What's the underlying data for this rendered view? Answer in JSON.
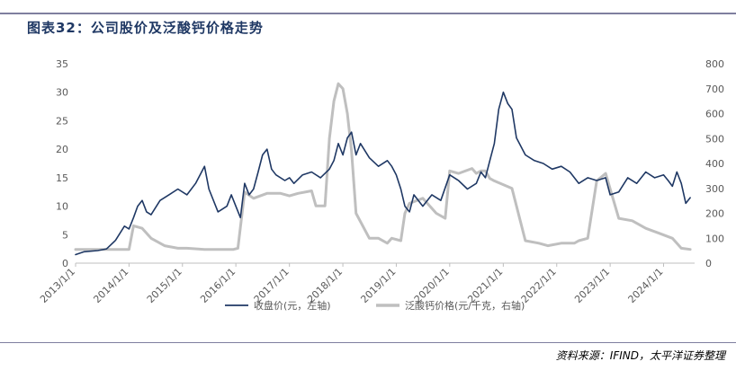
{
  "title": "图表32：公司股价及泛酸钙价格走势",
  "source": "资料来源：IFIND，太平洋证券整理",
  "colors": {
    "stock": "#1f3864",
    "price": "#bfbfbf",
    "axis": "#bfbfbf",
    "text": "#595959"
  },
  "chart_data": {
    "type": "line",
    "grid": false,
    "legend_position": "bottom",
    "x_ticks": [
      "2013/1/1",
      "2014/1/1",
      "2015/1/1",
      "2016/1/1",
      "2017/1/1",
      "2018/1/1",
      "2019/1/1",
      "2020/1/1",
      "2021/1/1",
      "2022/1/1",
      "2023/1/1",
      "2024/1/1"
    ],
    "xlim": [
      "2013-01-01",
      "2024-07-31"
    ],
    "y_left": {
      "ticks": [
        "0",
        "5",
        "10",
        "15",
        "20",
        "25",
        "30",
        "35"
      ],
      "lim": [
        0,
        35
      ]
    },
    "y_right": {
      "ticks": [
        "0",
        "100",
        "200",
        "300",
        "400",
        "500",
        "600",
        "700",
        "800"
      ],
      "lim": [
        0,
        800
      ]
    },
    "series": [
      {
        "name": "收盘价(元，左轴)",
        "axis": "left",
        "x": [
          "2013-01-01",
          "2013-03-01",
          "2013-06-01",
          "2013-08-01",
          "2013-10-01",
          "2013-12-01",
          "2014-01-01",
          "2014-02-01",
          "2014-03-01",
          "2014-04-01",
          "2014-05-01",
          "2014-06-01",
          "2014-08-01",
          "2014-10-01",
          "2014-12-01",
          "2015-02-01",
          "2015-04-01",
          "2015-06-01",
          "2015-07-01",
          "2015-09-01",
          "2015-11-01",
          "2015-12-01",
          "2016-01-01",
          "2016-02-01",
          "2016-03-01",
          "2016-04-01",
          "2016-05-01",
          "2016-06-01",
          "2016-07-01",
          "2016-08-01",
          "2016-09-01",
          "2016-10-01",
          "2016-12-01",
          "2017-01-01",
          "2017-02-01",
          "2017-04-01",
          "2017-06-01",
          "2017-08-01",
          "2017-10-01",
          "2017-11-01",
          "2017-12-01",
          "2018-01-01",
          "2018-02-01",
          "2018-03-01",
          "2018-04-01",
          "2018-05-01",
          "2018-07-01",
          "2018-09-01",
          "2018-11-01",
          "2018-12-01",
          "2019-01-01",
          "2019-02-01",
          "2019-03-01",
          "2019-04-01",
          "2019-05-01",
          "2019-07-01",
          "2019-09-01",
          "2019-11-01",
          "2020-01-01",
          "2020-03-01",
          "2020-05-01",
          "2020-07-01",
          "2020-08-01",
          "2020-09-01",
          "2020-10-01",
          "2020-11-01",
          "2020-12-01",
          "2021-01-01",
          "2021-02-01",
          "2021-03-01",
          "2021-04-01",
          "2021-06-01",
          "2021-08-01",
          "2021-10-01",
          "2021-12-01",
          "2022-02-01",
          "2022-04-01",
          "2022-06-01",
          "2022-08-01",
          "2022-10-01",
          "2022-12-01",
          "2023-01-01",
          "2023-03-01",
          "2023-05-01",
          "2023-07-01",
          "2023-09-01",
          "2023-11-01",
          "2024-01-01",
          "2024-02-01",
          "2024-03-01",
          "2024-04-01",
          "2024-05-01",
          "2024-06-01",
          "2024-07-01"
        ],
        "values": [
          1.5,
          2.0,
          2.2,
          2.5,
          4.0,
          6.5,
          6.0,
          8.0,
          10.0,
          11.0,
          9.0,
          8.5,
          11.0,
          12.0,
          13.0,
          12.0,
          14.0,
          17.0,
          13.0,
          9.0,
          10.0,
          12.0,
          10.0,
          8.0,
          14.0,
          12.0,
          13.0,
          16.0,
          19.0,
          20.0,
          16.5,
          15.5,
          14.5,
          15.0,
          14.0,
          15.5,
          16.0,
          15.0,
          16.5,
          18.0,
          21.0,
          19.0,
          22.0,
          23.0,
          19.0,
          21.0,
          18.5,
          17.0,
          18.0,
          17.0,
          15.5,
          13.0,
          10.0,
          9.0,
          12.0,
          10.0,
          12.0,
          11.0,
          15.5,
          14.5,
          13.0,
          14.0,
          16.0,
          15.0,
          18.0,
          21.0,
          27.0,
          30.0,
          28.0,
          27.0,
          22.0,
          19.0,
          18.0,
          17.5,
          16.5,
          17.0,
          16.0,
          14.0,
          15.0,
          14.5,
          15.0,
          12.0,
          12.5,
          15.0,
          14.0,
          16.0,
          15.0,
          15.5,
          14.5,
          13.5,
          16.0,
          14.0,
          10.5,
          11.5
        ]
      },
      {
        "name": "泛酸钙价格(元/千克，右轴)",
        "axis": "right",
        "x": [
          "2013-01-01",
          "2013-12-01",
          "2014-01-01",
          "2014-02-01",
          "2014-04-01",
          "2014-06-01",
          "2014-09-01",
          "2014-12-01",
          "2015-02-01",
          "2015-06-01",
          "2015-10-01",
          "2015-12-15",
          "2016-01-15",
          "2016-03-01",
          "2016-05-01",
          "2016-08-01",
          "2016-11-01",
          "2017-01-01",
          "2017-03-01",
          "2017-06-01",
          "2017-07-01",
          "2017-09-01",
          "2017-10-01",
          "2017-11-01",
          "2017-12-01",
          "2018-01-01",
          "2018-02-01",
          "2018-03-01",
          "2018-04-01",
          "2018-07-01",
          "2018-09-01",
          "2018-11-01",
          "2018-12-01",
          "2019-02-01",
          "2019-03-01",
          "2019-04-01",
          "2019-07-01",
          "2019-10-01",
          "2019-12-01",
          "2020-01-01",
          "2020-03-01",
          "2020-06-01",
          "2020-07-01",
          "2020-08-01",
          "2020-09-01",
          "2020-10-01",
          "2020-11-01",
          "2021-03-01",
          "2021-06-01",
          "2021-09-01",
          "2021-11-01",
          "2022-02-01",
          "2022-04-01",
          "2022-05-01",
          "2022-06-01",
          "2022-08-01",
          "2022-10-01",
          "2022-12-01",
          "2023-03-01",
          "2023-06-01",
          "2023-09-01",
          "2023-12-01",
          "2024-03-01",
          "2024-05-01",
          "2024-07-01"
        ],
        "values": [
          55,
          55,
          55,
          150,
          140,
          100,
          70,
          60,
          60,
          55,
          55,
          55,
          60,
          285,
          260,
          280,
          280,
          270,
          280,
          290,
          230,
          230,
          500,
          650,
          720,
          700,
          600,
          450,
          200,
          100,
          100,
          80,
          100,
          90,
          200,
          240,
          260,
          200,
          180,
          370,
          360,
          380,
          360,
          370,
          370,
          340,
          330,
          300,
          90,
          80,
          70,
          80,
          80,
          80,
          90,
          100,
          330,
          360,
          180,
          170,
          140,
          120,
          100,
          60,
          55
        ]
      }
    ]
  }
}
